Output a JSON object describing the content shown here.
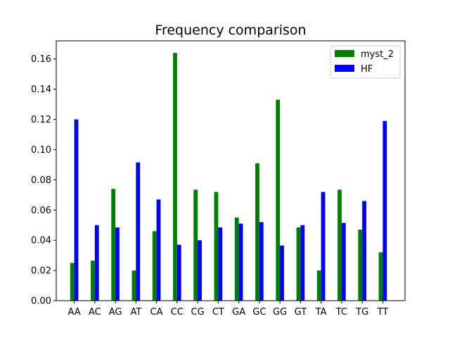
{
  "chart_data": {
    "type": "bar",
    "title": "Frequency comparison",
    "xlabel": "",
    "ylabel": "",
    "categories": [
      "AA",
      "AC",
      "AG",
      "AT",
      "CA",
      "CC",
      "CG",
      "CT",
      "GA",
      "GC",
      "GG",
      "GT",
      "TA",
      "TC",
      "TG",
      "TT"
    ],
    "series": [
      {
        "name": "myst_2",
        "color": "#008000",
        "values": [
          0.025,
          0.0265,
          0.074,
          0.02,
          0.046,
          0.164,
          0.0735,
          0.072,
          0.055,
          0.091,
          0.133,
          0.0485,
          0.02,
          0.0735,
          0.047,
          0.032
        ]
      },
      {
        "name": "HF",
        "color": "#0000ff",
        "values": [
          0.12,
          0.05,
          0.0485,
          0.0915,
          0.067,
          0.037,
          0.04,
          0.0485,
          0.051,
          0.052,
          0.0365,
          0.05,
          0.072,
          0.0515,
          0.066,
          0.119
        ]
      }
    ],
    "ylim": [
      0,
      0.172
    ],
    "yticks": [
      "0.00",
      "0.02",
      "0.04",
      "0.06",
      "0.08",
      "0.10",
      "0.12",
      "0.14",
      "0.16"
    ],
    "grid": false,
    "legend_position": "top-right"
  }
}
